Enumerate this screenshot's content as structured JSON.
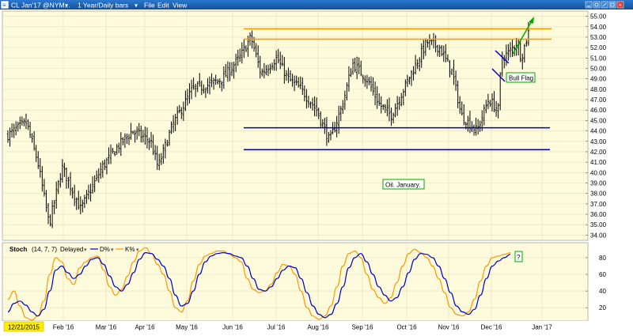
{
  "window": {
    "title": "CL Jan'17 @NYM...",
    "interval": "1 Year/Daily bars",
    "menu": [
      "File",
      "Edit",
      "View"
    ],
    "colors": {
      "titlebar": "#1a63b8",
      "plot_bg": "#fdfbdc",
      "outer_bg": "#ffffff"
    }
  },
  "chart_data": [
    {
      "type": "ohlc",
      "symbol": "CL Jan'17 @NYM",
      "interval": "1 Year/Daily bars",
      "ylim": [
        33.5,
        55.5
      ],
      "y_ticks": [
        34,
        35,
        36,
        37,
        38,
        39,
        40,
        41,
        42,
        43,
        44,
        45,
        46,
        47,
        48,
        49,
        50,
        51,
        52,
        53,
        54,
        55
      ],
      "x_ticks": [
        "Feb '16",
        "Mar '16",
        "Apr '16",
        "May '16",
        "Jun '16",
        "Jul '16",
        "Aug '16",
        "Sep '16",
        "Oct '16",
        "Nov '16",
        "Dec '16",
        "Jan '17"
      ],
      "x_labels": [
        "12/21/2015",
        "Feb '16",
        "Mar '16",
        "Apr '16",
        "May '16",
        "Jun '16",
        "Jul '16",
        "Aug '16",
        "Sep '16",
        "Oct '16",
        "Nov '16",
        "Dec '16",
        "Jan '17"
      ],
      "price_path": [
        [
          "12/21/2015",
          43.5
        ],
        [
          "01/04/2016",
          44.8
        ],
        [
          "01/12/2016",
          41.0
        ],
        [
          "01/20/2016",
          35.0
        ],
        [
          "01/29/2016",
          40.5
        ],
        [
          "02/11/2016",
          36.5
        ],
        [
          "02/26/2016",
          40.5
        ],
        [
          "03/08/2016",
          42.5
        ],
        [
          "03/18/2016",
          44.0
        ],
        [
          "03/31/2016",
          43.0
        ],
        [
          "04/05/2016",
          40.5
        ],
        [
          "04/15/2016",
          44.5
        ],
        [
          "04/29/2016",
          48.0
        ],
        [
          "05/12/2016",
          48.5
        ],
        [
          "05/20/2016",
          49.0
        ],
        [
          "06/01/2016",
          51.0
        ],
        [
          "06/09/2016",
          53.0
        ],
        [
          "06/16/2016",
          49.5
        ],
        [
          "06/27/2016",
          51.0
        ],
        [
          "07/05/2016",
          49.0
        ],
        [
          "07/14/2016",
          48.0
        ],
        [
          "07/25/2016",
          46.0
        ],
        [
          "08/03/2016",
          43.0
        ],
        [
          "08/12/2016",
          46.5
        ],
        [
          "08/19/2016",
          50.5
        ],
        [
          "08/29/2016",
          49.0
        ],
        [
          "09/07/2016",
          46.5
        ],
        [
          "09/15/2016",
          45.5
        ],
        [
          "09/29/2016",
          49.5
        ],
        [
          "10/10/2016",
          52.5
        ],
        [
          "10/19/2016",
          52.0
        ],
        [
          "10/28/2016",
          49.5
        ],
        [
          "11/03/2016",
          45.5
        ],
        [
          "11/14/2016",
          44.0
        ],
        [
          "11/22/2016",
          47.0
        ],
        [
          "11/29/2016",
          46.0
        ],
        [
          "12/01/2016",
          51.0
        ],
        [
          "12/06/2016",
          51.5
        ],
        [
          "12/12/2016",
          52.5
        ],
        [
          "12/15/2016",
          51.0
        ],
        [
          "12/20/2016",
          53.5
        ]
      ],
      "resistance_lines": [
        {
          "name": "upper",
          "y": 53.8,
          "color": "#ff9900"
        },
        {
          "name": "lower",
          "y": 52.8,
          "color": "#ff9900"
        }
      ],
      "support_lines": [
        {
          "name": "upper",
          "y": 44.3,
          "color": "#0000cc"
        },
        {
          "name": "lower",
          "y": 42.2,
          "color": "#0000cc"
        }
      ],
      "annotations": [
        {
          "text": "Bull Flag",
          "type": "label-box",
          "color": "#00aa00"
        },
        {
          "text": "Oil. January.",
          "type": "label-box",
          "color": "#00aa00"
        }
      ]
    },
    {
      "type": "line",
      "title": "Stoch",
      "params": "(14, 7, 7)",
      "delayed_label": "Delayed",
      "ylim": [
        5,
        97
      ],
      "y_ticks": [
        20,
        40,
        60,
        80
      ],
      "series": [
        {
          "name": "D%",
          "color": "#0000cc",
          "values": [
            15,
            25,
            28,
            23,
            15,
            10,
            18,
            40,
            65,
            70,
            62,
            55,
            60,
            70,
            78,
            80,
            72,
            58,
            45,
            40,
            48,
            62,
            78,
            86,
            85,
            78,
            70,
            55,
            35,
            22,
            25,
            40,
            60,
            75,
            82,
            85,
            86,
            85,
            82,
            80,
            70,
            55,
            42,
            40,
            45,
            55,
            65,
            70,
            68,
            55,
            38,
            22,
            12,
            8,
            12,
            25,
            45,
            68,
            80,
            85,
            75,
            60,
            45,
            35,
            28,
            32,
            45,
            62,
            78,
            85,
            84,
            80,
            70,
            55,
            38,
            22,
            15,
            12,
            18,
            35,
            55,
            70,
            76,
            80,
            84
          ]
        },
        {
          "name": "K%",
          "color": "#ff9900",
          "values": [
            30,
            40,
            22,
            8,
            5,
            10,
            28,
            60,
            80,
            75,
            55,
            48,
            68,
            75,
            80,
            82,
            65,
            45,
            35,
            42,
            58,
            75,
            88,
            92,
            85,
            72,
            60,
            40,
            20,
            15,
            28,
            52,
            72,
            82,
            85,
            88,
            88,
            84,
            80,
            75,
            55,
            42,
            38,
            40,
            48,
            62,
            72,
            70,
            60,
            40,
            20,
            10,
            6,
            10,
            22,
            45,
            70,
            85,
            88,
            80,
            60,
            42,
            32,
            25,
            32,
            50,
            70,
            85,
            90,
            86,
            80,
            70,
            55,
            38,
            20,
            12,
            10,
            15,
            30,
            52,
            70,
            80,
            82,
            84,
            86
          ]
        }
      ],
      "annotations": [
        {
          "text": "?",
          "type": "label-box",
          "color": "#00aa00"
        }
      ]
    }
  ]
}
